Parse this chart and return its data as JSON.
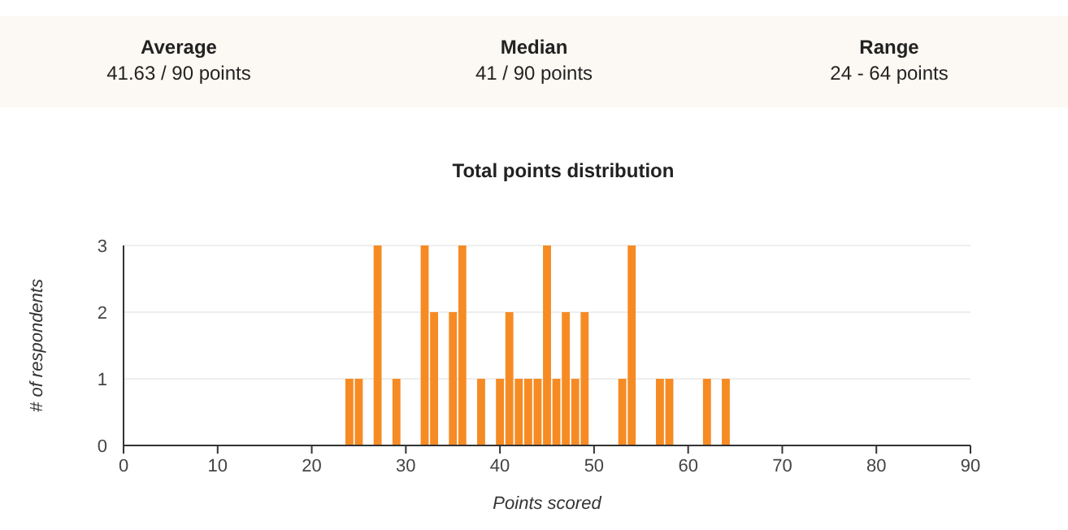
{
  "chart_data": {
    "type": "bar",
    "title": "Total points distribution",
    "xlabel": "Points scored",
    "ylabel": "# of respondents",
    "annotations": [
      "Average",
      "41.63 / 90 points",
      "Median",
      "41 / 90 points",
      "Range",
      "24 - 64 points"
    ],
    "x": [
      24,
      25,
      27,
      29,
      32,
      33,
      35,
      36,
      38,
      40,
      41,
      42,
      43,
      44,
      45,
      46,
      47,
      48,
      49,
      53,
      54,
      57,
      58,
      62,
      64
    ],
    "values": [
      1,
      1,
      3,
      1,
      3,
      2,
      2,
      3,
      1,
      1,
      2,
      1,
      1,
      1,
      3,
      1,
      2,
      1,
      2,
      1,
      3,
      1,
      1,
      1,
      1
    ],
    "color": "#f68b24",
    "xlim": [
      0,
      90
    ],
    "xticks": [
      0,
      10,
      20,
      30,
      40,
      50,
      60,
      70,
      80,
      90
    ],
    "ylim": [
      0,
      3
    ],
    "yticks": [
      0,
      1,
      2,
      3
    ],
    "grid": "y"
  }
}
